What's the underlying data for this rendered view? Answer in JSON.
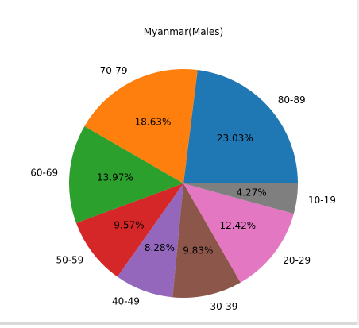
{
  "chart_data": {
    "type": "pie",
    "title": "Myanmar(Males)",
    "categories": [
      "80-89",
      "70-79",
      "60-69",
      "50-59",
      "40-49",
      "30-39",
      "20-29",
      "10-19"
    ],
    "values": [
      23.03,
      18.63,
      13.97,
      9.57,
      8.28,
      9.83,
      12.42,
      4.27
    ],
    "percent_labels": [
      "23.03%",
      "18.63%",
      "13.97%",
      "9.57%",
      "8.28%",
      "9.83%",
      "12.42%",
      "4.27%"
    ],
    "colors": [
      "#1f77b4",
      "#ff7f0e",
      "#2ca02c",
      "#d62728",
      "#9467bd",
      "#8c564b",
      "#e377c2",
      "#7f7f7f"
    ],
    "start_angle_deg": 0,
    "direction": "counterclockwise"
  }
}
